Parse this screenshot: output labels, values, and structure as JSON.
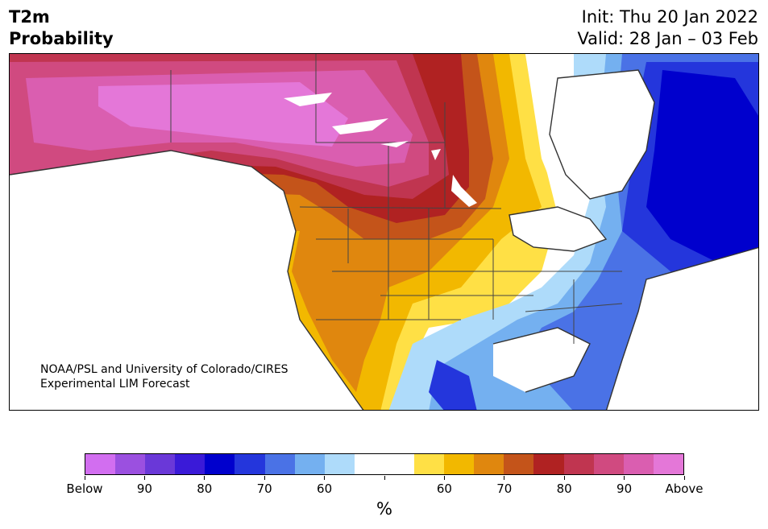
{
  "header": {
    "title_line1": "T2m",
    "title_line2": "Probability",
    "init": "Init: Thu 20 Jan 2022",
    "valid": "Valid: 28 Jan – 03 Feb"
  },
  "map": {
    "region": "North America",
    "credit_line1": "NOAA/PSL and University of Colorado/CIRES",
    "credit_line2": "Experimental LIM Forecast"
  },
  "colorbar": {
    "colors": [
      "#d26ef0",
      "#9b50e0",
      "#6a38d8",
      "#3a1ad8",
      "#0000cd",
      "#2436dc",
      "#4a72e6",
      "#74b0f0",
      "#aedbfa",
      "#ffffff",
      "#ffffff",
      "#ffe045",
      "#f2b800",
      "#e0870e",
      "#c4541a",
      "#b02222",
      "#c03550",
      "#d04a80",
      "#da5eb0",
      "#e477d8"
    ],
    "labels": [
      "Below",
      "90",
      "80",
      "70",
      "60",
      "",
      "60",
      "70",
      "80",
      "90",
      "Above"
    ],
    "unit": "%"
  }
}
